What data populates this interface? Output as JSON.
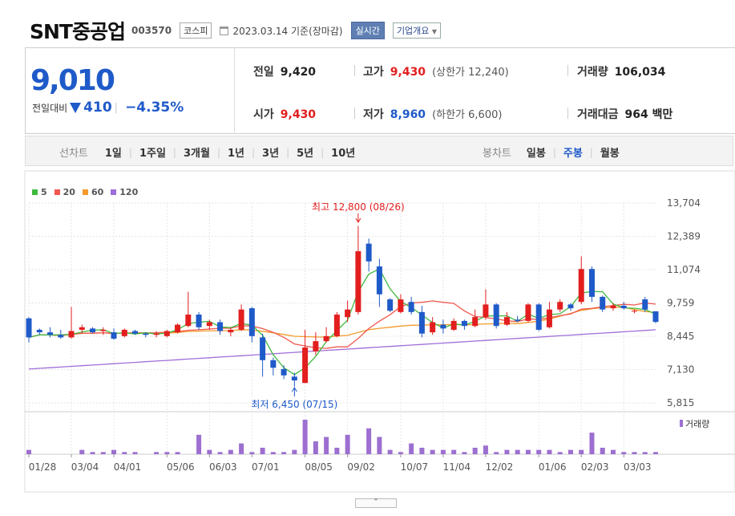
{
  "header": {
    "company": "SNT중공업",
    "code": "003570",
    "market": "코스피",
    "date": "2023.03.14 기준(장마감)",
    "realtime": "실시간",
    "overview": "기업개요"
  },
  "quote": {
    "price": "9,010",
    "diff_label": "전일대비",
    "diff": "410",
    "pct": "−4.35%",
    "prev_label": "전일",
    "prev": "9,420",
    "high_label": "고가",
    "high": "9,430",
    "upper_label": "(상한가 12,240)",
    "volume_label": "거래량",
    "volume": "106,034",
    "open_label": "시가",
    "open": "9,430",
    "low_label": "저가",
    "low": "8,960",
    "lower_label": "(하한가 6,600)",
    "amount_label": "거래대금",
    "amount": "964",
    "amount_unit": "백만"
  },
  "periods": {
    "line_label": "선차트",
    "line_items": [
      "1일",
      "1주일",
      "3개월",
      "1년",
      "3년",
      "5년",
      "10년"
    ],
    "candle_label": "봉차트",
    "candle_items": [
      "일봉",
      "주봉",
      "월봉"
    ]
  },
  "colors": {
    "up": "#e21e1e",
    "down": "#1f5ac9",
    "ma5": "#3fb93f",
    "ma20": "#f0584f",
    "ma60": "#f39a2b",
    "ma120": "#a06ed8",
    "volume": "#9c6fd0"
  },
  "chart_data": {
    "type": "candlestick",
    "legend": [
      {
        "name": "5",
        "color": "#3fb93f"
      },
      {
        "name": "20",
        "color": "#f0584f"
      },
      {
        "name": "60",
        "color": "#f39a2b"
      },
      {
        "name": "120",
        "color": "#a06ed8"
      }
    ],
    "y_ticks": [
      "13,704",
      "12,389",
      "11,074",
      "9,759",
      "8,445",
      "7,130",
      "5,815"
    ],
    "ylim": [
      5815,
      13704
    ],
    "x_labels": [
      "01/28",
      "03/04",
      "04/01",
      "05/06",
      "06/03",
      "07/01",
      "08/05",
      "09/02",
      "10/07",
      "11/04",
      "12/02",
      "01/06",
      "02/03",
      "03/03"
    ],
    "x_label_index": [
      0,
      4,
      8,
      13,
      17,
      21,
      26,
      30,
      35,
      39,
      43,
      48,
      52,
      56
    ],
    "annotations": {
      "high": "최고 12,800 (08/26)",
      "low": "최저 6,450 (07/15)"
    },
    "volume_label": "거래량",
    "candles": [
      [
        9150,
        9200,
        8200,
        8400
      ],
      [
        8700,
        8750,
        8500,
        8600
      ],
      [
        8600,
        8800,
        8400,
        8500
      ],
      [
        8500,
        8700,
        8350,
        8400
      ],
      [
        8400,
        9600,
        8350,
        8650
      ],
      [
        8700,
        8900,
        8550,
        8800
      ],
      [
        8750,
        8800,
        8550,
        8600
      ],
      [
        8650,
        8800,
        8500,
        8700
      ],
      [
        8600,
        8750,
        8300,
        8350
      ],
      [
        8450,
        8750,
        8400,
        8700
      ],
      [
        8650,
        8700,
        8500,
        8550
      ],
      [
        8550,
        8600,
        8400,
        8500
      ],
      [
        8500,
        8650,
        8400,
        8550
      ],
      [
        8450,
        8700,
        8400,
        8650
      ],
      [
        8600,
        8950,
        8550,
        8900
      ],
      [
        8850,
        10200,
        8800,
        9300
      ],
      [
        9300,
        9400,
        8700,
        8800
      ],
      [
        8850,
        9100,
        8700,
        9000
      ],
      [
        9000,
        9100,
        8500,
        8650
      ],
      [
        8600,
        8800,
        8450,
        8700
      ],
      [
        8700,
        9700,
        8650,
        9500
      ],
      [
        9550,
        9600,
        8200,
        8450
      ],
      [
        8400,
        8550,
        6850,
        7500
      ],
      [
        7500,
        7600,
        6900,
        7200
      ],
      [
        7150,
        7300,
        6750,
        6900
      ],
      [
        6850,
        7000,
        6450,
        6700
      ],
      [
        6600,
        8700,
        6600,
        8000
      ],
      [
        7850,
        8600,
        7700,
        8250
      ],
      [
        8250,
        8800,
        8200,
        8450
      ],
      [
        8450,
        9400,
        8400,
        9300
      ],
      [
        9200,
        9850,
        9000,
        9500
      ],
      [
        9400,
        12800,
        9300,
        11800
      ],
      [
        12100,
        12300,
        11000,
        11400
      ],
      [
        11200,
        11500,
        9600,
        10100
      ],
      [
        9900,
        9950,
        9400,
        9450
      ],
      [
        9400,
        10100,
        9350,
        9900
      ],
      [
        9800,
        10000,
        9300,
        9400
      ],
      [
        9400,
        9650,
        8400,
        8550
      ],
      [
        8600,
        9200,
        8500,
        9000
      ],
      [
        8900,
        9100,
        8550,
        8750
      ],
      [
        8700,
        9150,
        8650,
        9050
      ],
      [
        9050,
        9100,
        8700,
        8850
      ],
      [
        8850,
        9500,
        8800,
        9200
      ],
      [
        9200,
        10300,
        9100,
        9700
      ],
      [
        9700,
        9750,
        8750,
        8850
      ],
      [
        8900,
        9400,
        8850,
        9200
      ],
      [
        9100,
        9250,
        9000,
        9050
      ],
      [
        9050,
        9750,
        9000,
        9700
      ],
      [
        9700,
        9750,
        8650,
        8700
      ],
      [
        8800,
        9800,
        8750,
        9500
      ],
      [
        9500,
        9900,
        9400,
        9800
      ],
      [
        9700,
        9750,
        9450,
        9550
      ],
      [
        9800,
        11600,
        9700,
        11100
      ],
      [
        11100,
        11200,
        9800,
        10000
      ],
      [
        10000,
        10050,
        9400,
        9500
      ],
      [
        9550,
        9750,
        9450,
        9650
      ],
      [
        9650,
        9800,
        9500,
        9550
      ],
      [
        9450,
        9500,
        9350,
        9450
      ],
      [
        9900,
        10000,
        9400,
        9500
      ],
      [
        9430,
        9430,
        8960,
        9010
      ]
    ],
    "volumes": [
      2,
      0,
      0,
      0,
      0,
      2,
      1,
      1,
      2,
      1,
      1,
      0,
      1,
      1,
      1,
      0,
      9,
      2,
      1,
      2,
      5,
      1,
      3,
      1,
      1,
      2,
      16,
      6,
      8,
      3,
      9,
      0,
      12,
      8,
      2,
      1,
      5,
      3,
      2,
      2,
      2,
      1,
      3,
      4,
      1,
      2,
      2,
      2,
      2,
      2,
      1,
      2,
      2,
      10,
      3,
      2,
      1,
      1,
      1,
      1
    ]
  }
}
